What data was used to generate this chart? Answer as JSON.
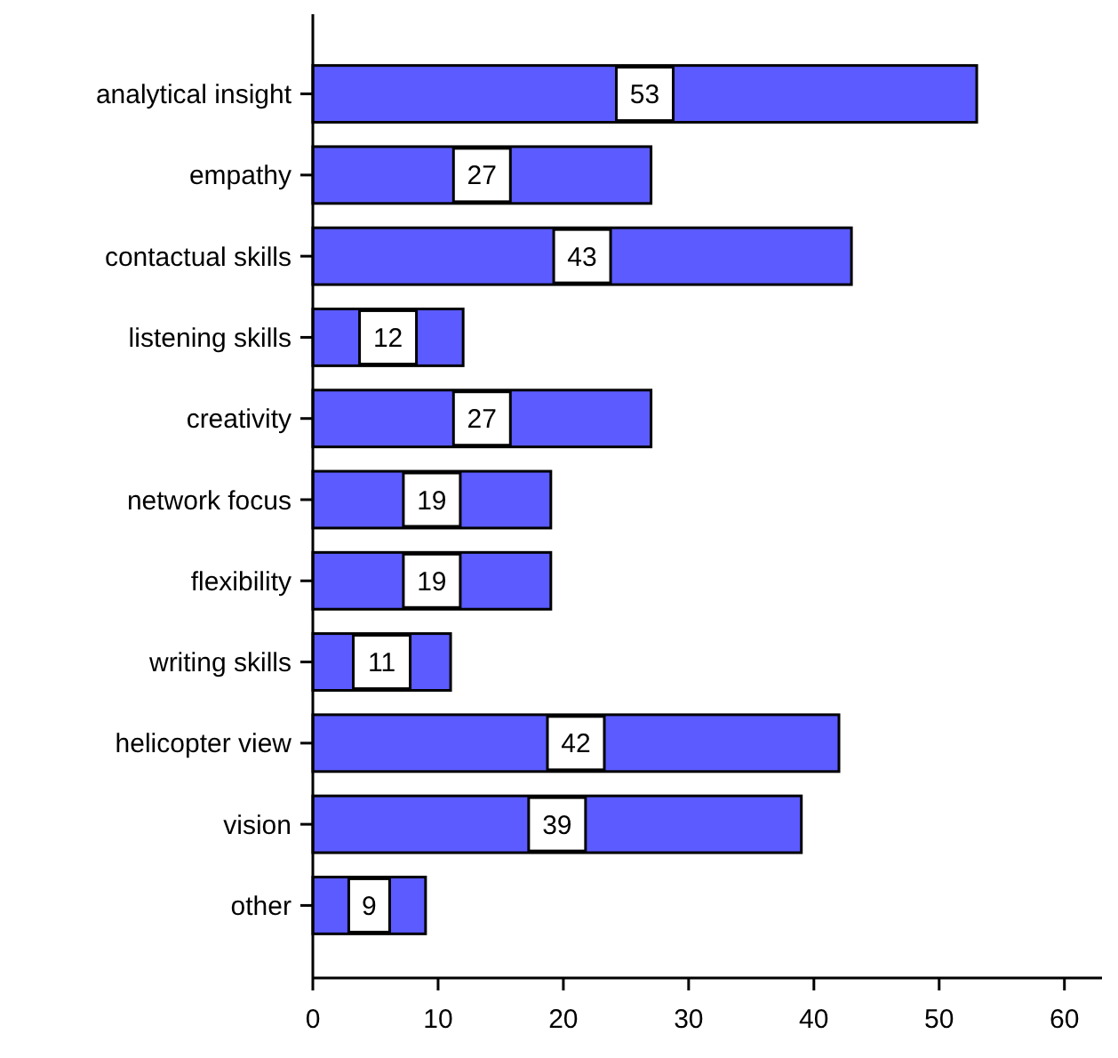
{
  "chart_data": {
    "type": "bar",
    "orientation": "horizontal",
    "categories": [
      "analytical insight",
      "empathy",
      "contactual skills",
      "listening skills",
      "creativity",
      "network focus",
      "flexibility",
      "writing skills",
      "helicopter view",
      "vision",
      "other"
    ],
    "values": [
      53,
      27,
      43,
      12,
      27,
      19,
      19,
      11,
      42,
      39,
      9
    ],
    "color": "#5b5bff",
    "data_labels": true,
    "xlim": [
      0,
      63
    ],
    "xticks": [
      0,
      10,
      20,
      30,
      40,
      50,
      60
    ],
    "grid": false
  }
}
